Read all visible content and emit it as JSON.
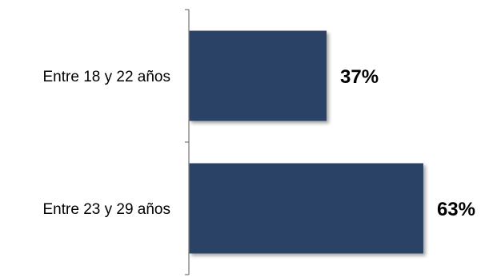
{
  "chart_data": {
    "type": "bar",
    "orientation": "horizontal",
    "categories": [
      "Entre 18 y 22 años",
      "Entre 23 y 29 años"
    ],
    "values": [
      37,
      63
    ],
    "value_labels": [
      "37%",
      "63%"
    ],
    "unit": "%",
    "title": "",
    "xlabel": "",
    "ylabel": "",
    "xlim": [
      0,
      100
    ],
    "grid": false,
    "legend": "none",
    "bar_color": "#2b4366",
    "axis_color": "#7f7f7f"
  }
}
